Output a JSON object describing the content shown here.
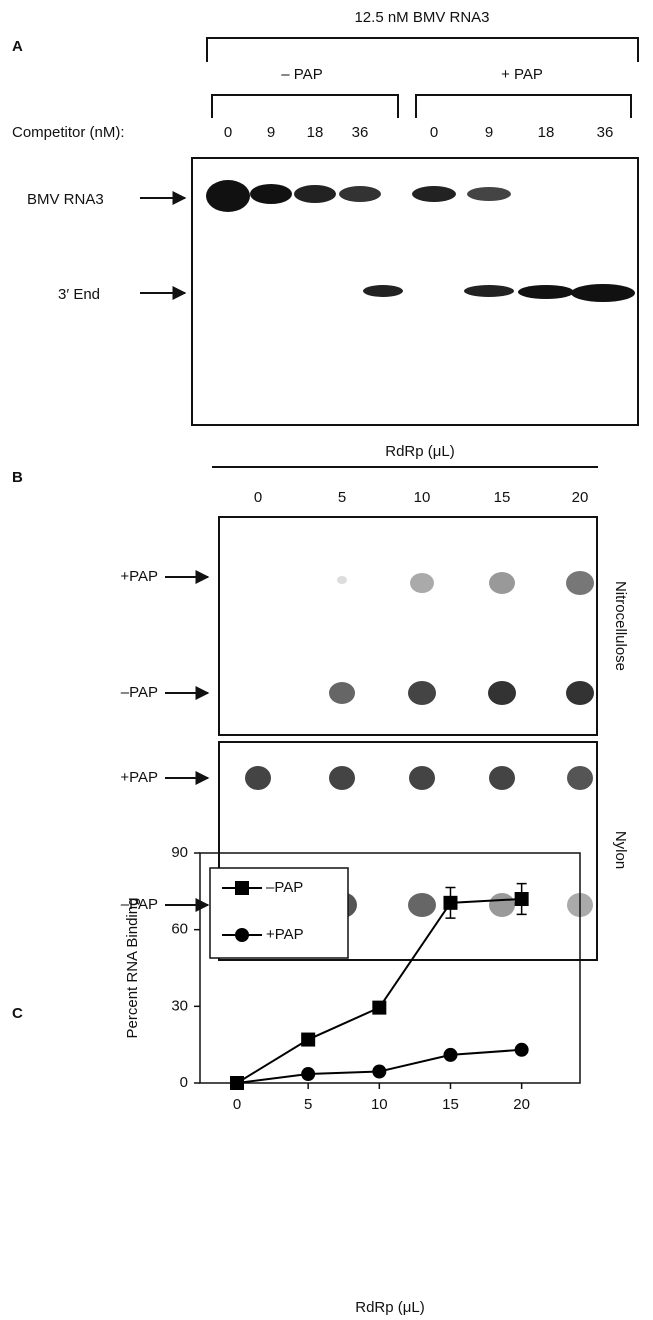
{
  "panel_a": {
    "label": "A",
    "title": "12.5 nM BMV RNA3",
    "groups": [
      "– PAP",
      "+ PAP"
    ],
    "competitor_label": "Competitor (nM):",
    "lanes": [
      0,
      9,
      18,
      36,
      0,
      9,
      18,
      36
    ],
    "bands": [
      "BMV RNA3",
      "3′ End"
    ]
  },
  "panel_b": {
    "label": "B",
    "title": "RdRp (μL)",
    "columns": [
      0,
      5,
      10,
      15,
      20
    ],
    "rows": [
      "+PAP",
      "–PAP",
      "+PAP",
      "–PAP"
    ],
    "membranes": [
      "Nitrocellulose",
      "Nylon"
    ]
  },
  "chart_data": {
    "type": "line",
    "panel": "C",
    "x_label": "RdRp (μL)",
    "y_label": "Percent RNA Binding",
    "x": [
      0,
      5,
      10,
      15,
      20
    ],
    "xlim": [
      -2.6,
      24.1
    ],
    "xticks": [
      0,
      5,
      10,
      15,
      20
    ],
    "ylim": [
      0,
      90
    ],
    "yticks": [
      0,
      30,
      60,
      90
    ],
    "legend": "upper left",
    "series": [
      {
        "name": "–PAP",
        "color": "#000000",
        "marker": "square",
        "values": [
          0,
          17,
          29.5,
          70.5,
          72
        ],
        "errors": [
          null,
          null,
          null,
          6,
          6
        ]
      },
      {
        "name": "+PAP",
        "color": "#000000",
        "marker": "circle",
        "values": [
          0,
          3.5,
          4.5,
          11,
          13
        ]
      }
    ]
  }
}
